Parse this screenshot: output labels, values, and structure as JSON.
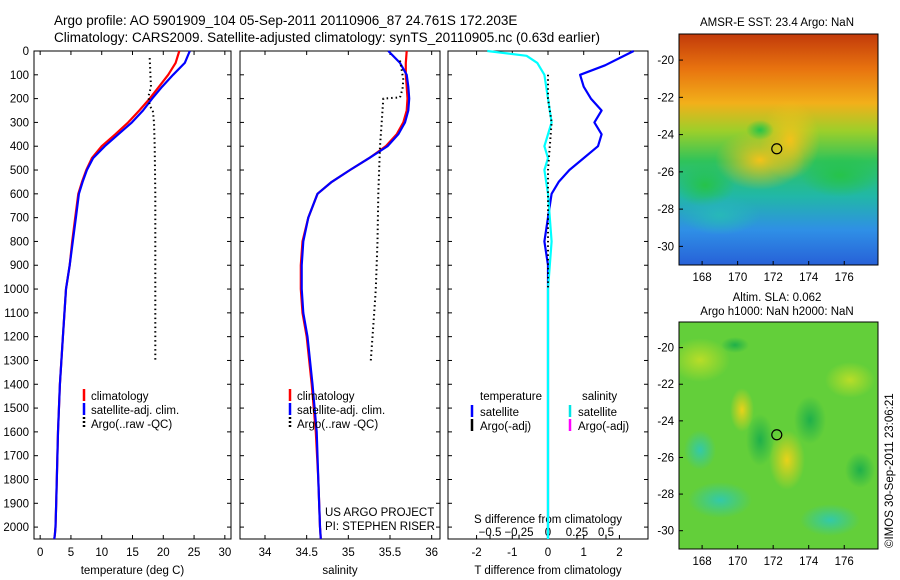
{
  "header": {
    "line1": "Argo profile: AO 5901909_104 05-Sep-2011 20110906_87 24.761S 172.203E",
    "line2": "Climatology: CARS2009. Satellite-adjusted climatology: synTS_20110905.nc (0.63d earlier)"
  },
  "depth_axis": {
    "ticks": [
      0,
      100,
      200,
      300,
      400,
      500,
      600,
      700,
      800,
      900,
      1000,
      1100,
      1200,
      1300,
      1400,
      1500,
      1600,
      1700,
      1800,
      1900,
      2000
    ],
    "range": [
      0,
      2050
    ]
  },
  "chart_data": [
    {
      "type": "line",
      "xlabel": "temperature (deg C)",
      "xlim": [
        -1,
        31
      ],
      "xticks": [
        0,
        5,
        10,
        15,
        20,
        25,
        30
      ],
      "ylim": [
        0,
        2050
      ],
      "legend": [
        "climatology",
        "satellite-adj. clim.",
        "Argo(..raw -QC)"
      ],
      "series": [
        {
          "name": "climatology",
          "color": "#ff0000",
          "x": [
            22.6,
            22.0,
            20.8,
            19.3,
            17.8,
            16.1,
            14.3,
            12.2,
            10.0,
            8.4,
            7.5,
            6.8,
            6.2,
            5.7,
            5.2,
            4.8,
            4.2,
            3.7,
            3.2,
            2.9,
            2.7,
            2.6,
            2.5,
            2.4,
            2.3
          ],
          "y": [
            0,
            50,
            100,
            150,
            200,
            250,
            300,
            350,
            400,
            450,
            500,
            550,
            600,
            700,
            800,
            900,
            1000,
            1200,
            1400,
            1600,
            1800,
            1900,
            2000,
            2030,
            2050
          ]
        },
        {
          "name": "satellite-adj. clim.",
          "color": "#0000ff",
          "x": [
            24.3,
            23.5,
            21.6,
            19.8,
            18.2,
            16.7,
            14.9,
            12.7,
            10.5,
            8.6,
            7.6,
            6.9,
            6.3,
            5.8,
            5.3,
            4.8,
            4.2,
            3.7,
            3.2,
            2.9,
            2.7,
            2.6,
            2.5,
            2.4,
            2.3
          ],
          "y": [
            0,
            50,
            100,
            150,
            200,
            250,
            300,
            350,
            400,
            450,
            500,
            550,
            600,
            700,
            800,
            900,
            1000,
            1200,
            1400,
            1600,
            1800,
            1900,
            2000,
            2030,
            2050
          ]
        },
        {
          "name": "Argo(..raw -QC)",
          "color": "#000000",
          "x": [
            17.8,
            17.9,
            18.0,
            17.6,
            17.8,
            18.3,
            18.5,
            18.6,
            18.7,
            18.7,
            18.7,
            18.7,
            18.7
          ],
          "y": [
            30,
            100,
            150,
            190,
            230,
            250,
            300,
            400,
            600,
            800,
            1000,
            1200,
            1300
          ]
        }
      ]
    },
    {
      "type": "line",
      "xlabel": "salinity",
      "xlim": [
        33.7,
        36.1
      ],
      "xticks": [
        34,
        34.5,
        35,
        35.5,
        36
      ],
      "ylim": [
        0,
        2050
      ],
      "legend": [
        "climatology",
        "satellite-adj. clim.",
        "Argo(..raw -QC)"
      ],
      "series": [
        {
          "name": "climatology",
          "color": "#ff0000",
          "x": [
            35.7,
            35.69,
            35.69,
            35.7,
            35.71,
            35.7,
            35.66,
            35.58,
            35.45,
            35.25,
            35.02,
            34.8,
            34.63,
            34.52,
            34.45,
            34.43,
            34.43,
            34.45,
            34.5,
            34.56,
            34.61,
            34.64,
            34.66,
            34.67
          ],
          "y": [
            0,
            50,
            100,
            150,
            200,
            250,
            300,
            350,
            400,
            450,
            500,
            550,
            600,
            700,
            800,
            900,
            1000,
            1100,
            1200,
            1400,
            1600,
            1800,
            2000,
            2050
          ]
        },
        {
          "name": "satellite-adj. clim.",
          "color": "#0000ff",
          "x": [
            35.48,
            35.62,
            35.7,
            35.72,
            35.73,
            35.72,
            35.68,
            35.6,
            35.47,
            35.25,
            35.02,
            34.8,
            34.63,
            34.52,
            34.46,
            34.44,
            34.44,
            34.46,
            34.51,
            34.57,
            34.62,
            34.64,
            34.66,
            34.67
          ],
          "y": [
            0,
            50,
            100,
            150,
            200,
            250,
            300,
            350,
            400,
            450,
            500,
            550,
            600,
            700,
            800,
            900,
            1000,
            1100,
            1200,
            1400,
            1600,
            1800,
            2000,
            2050
          ]
        },
        {
          "name": "Argo(..raw -QC)",
          "color": "#000000",
          "x": [
            35.62,
            35.64,
            35.66,
            35.65,
            35.62,
            35.42,
            35.4,
            35.38,
            35.36,
            35.35,
            35.33,
            35.31,
            35.29,
            35.27
          ],
          "y": [
            40,
            80,
            120,
            160,
            195,
            200,
            300,
            400,
            600,
            800,
            1000,
            1100,
            1200,
            1300
          ]
        }
      ]
    },
    {
      "type": "line",
      "xlabel": "T difference from climatology",
      "xlabel_top": "S difference from climatology",
      "xlim": [
        -2.8,
        2.8
      ],
      "xticks": [
        -2,
        -1,
        0,
        1,
        2
      ],
      "xticks_top": [
        -0.5,
        -0.25,
        0,
        0.25,
        0.5
      ],
      "xticks_top_labels": [
        "−0.5",
        "−0.25",
        "0",
        "0.25",
        "0.5"
      ],
      "ylim": [
        0,
        2050
      ],
      "legend_groups": [
        {
          "heading": "temperature",
          "items": [
            "satellite",
            "Argo(-adj)"
          ]
        },
        {
          "heading": "salinity",
          "items": [
            "satellite",
            "Argo(-adj)"
          ]
        }
      ],
      "series": [
        {
          "name": "temperature satellite",
          "color": "#0000ff",
          "x": [
            2.4,
            2.0,
            1.6,
            0.9,
            1.0,
            1.2,
            1.5,
            1.3,
            1.5,
            1.4,
            1.0,
            0.6,
            0.3,
            0.1,
            0.0,
            -0.1,
            0.0,
            0.0,
            0.0,
            0.0,
            0.0
          ],
          "y": [
            0,
            30,
            60,
            100,
            150,
            200,
            250,
            300,
            350,
            400,
            450,
            500,
            550,
            600,
            700,
            800,
            900,
            1000,
            1400,
            1800,
            2050
          ]
        },
        {
          "name": "salinity satellite",
          "color": "#00ffff",
          "x": [
            -1.7,
            -0.6,
            -0.3,
            -0.1,
            0.0,
            0.1,
            -0.1,
            0.0,
            -0.1,
            0.0,
            0.1,
            0.0,
            0.0,
            0.0,
            0.0,
            0.0
          ],
          "y": [
            0,
            20,
            50,
            100,
            200,
            300,
            400,
            450,
            500,
            600,
            800,
            1000,
            1200,
            1400,
            1800,
            2050
          ]
        },
        {
          "name": "Argo temperature diff",
          "color": "#000000",
          "x": [
            0.0,
            0.0,
            0.1,
            0.0,
            0.0,
            0.0
          ],
          "y": [
            100,
            200,
            300,
            500,
            800,
            1000
          ]
        }
      ]
    }
  ],
  "panel3_labels": {
    "credit1": "US ARGO PROJECT",
    "credit2": "PI: STEPHEN RISER"
  },
  "maps": {
    "top_title": "AMSR-E SST: 23.4  Argo: NaN",
    "bottom_title1": "Altim. SLA: 0.062",
    "bottom_title2": "Argo h1000: NaN h2000: NaN",
    "lat_ticks": [
      "-20",
      "-22",
      "-24",
      "-26",
      "-28",
      "-30"
    ],
    "lon_ticks": [
      "168",
      "170",
      "172",
      "174",
      "176"
    ],
    "float_lon": 172.203,
    "float_lat": -24.761,
    "credit": "©IMOS 30-Sep-2011 23:06:21"
  }
}
